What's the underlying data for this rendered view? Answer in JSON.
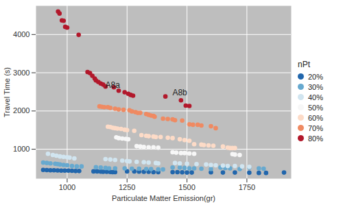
{
  "chart_data": {
    "type": "scatter",
    "xlabel": "Particulate Matter Emission(gr)",
    "ylabel": "Travel Time (s)",
    "xlim": [
      870,
      1935
    ],
    "ylim": [
      230,
      4750
    ],
    "xticks": [
      1000,
      1250,
      1500,
      1750
    ],
    "yticks": [
      1000,
      2000,
      3000,
      4000
    ],
    "grid": true,
    "legend": "right",
    "legend_title": "nPt",
    "annotations": [
      {
        "text": "A8a",
        "x": 1190,
        "y": 2680
      },
      {
        "text": "A8b",
        "x": 1470,
        "y": 2470
      }
    ],
    "series": [
      {
        "name": "20%",
        "color": "#2166ac",
        "x": [
          900,
          915,
          930,
          945,
          960,
          975,
          990,
          1005,
          1020,
          1035,
          1050,
          1110,
          1125,
          1140,
          1150,
          1165,
          1180,
          1190,
          1200,
          1250,
          1280,
          1300,
          1320,
          1340,
          1360,
          1380,
          1440,
          1460,
          1480,
          1500,
          1520,
          1600,
          1650,
          1700,
          1760,
          1800,
          1830,
          1905
        ],
        "values": [
          460,
          455,
          450,
          450,
          445,
          440,
          440,
          440,
          435,
          430,
          430,
          420,
          420,
          415,
          410,
          410,
          405,
          400,
          400,
          420,
          420,
          415,
          410,
          410,
          400,
          400,
          400,
          400,
          395,
          390,
          390,
          395,
          390,
          390,
          385,
          380,
          380,
          390
        ]
      },
      {
        "name": "30%",
        "color": "#67a9cf",
        "x": [
          900,
          915,
          930,
          950,
          960,
          970,
          985,
          1000,
          1020,
          1040,
          1060,
          1120,
          1140,
          1160,
          1175,
          1200,
          1240,
          1270,
          1300,
          1330,
          1350,
          1380,
          1400,
          1440,
          1470,
          1490,
          1510,
          1530,
          1560,
          1600,
          1640,
          1660,
          1680,
          1720,
          1760,
          1800,
          1820
        ],
        "values": [
          650,
          640,
          630,
          620,
          610,
          600,
          590,
          580,
          560,
          550,
          550,
          530,
          520,
          510,
          500,
          500,
          500,
          490,
          490,
          480,
          480,
          470,
          470,
          520,
          520,
          510,
          500,
          500,
          490,
          480,
          520,
          510,
          500,
          480,
          520,
          500,
          490
        ]
      },
      {
        "name": "40%",
        "color": "#d1e5f0",
        "x": [
          920,
          940,
          955,
          970,
          985,
          1000,
          1010,
          1030,
          1160,
          1180,
          1200,
          1230,
          1250,
          1260,
          1290,
          1320,
          1340,
          1370,
          1380,
          1450,
          1470,
          1500,
          1540,
          1580,
          1600,
          1620,
          1650,
          1670,
          1700,
          1730,
          1760
        ],
        "values": [
          880,
          850,
          830,
          810,
          800,
          790,
          780,
          760,
          740,
          730,
          720,
          700,
          690,
          680,
          670,
          660,
          650,
          640,
          630,
          640,
          630,
          620,
          610,
          600,
          590,
          580,
          570,
          560,
          560,
          550,
          540
        ]
      },
      {
        "name": "50%",
        "color": "#f7f7f7",
        "x": [
          1205,
          1215,
          1230,
          1245,
          1255,
          1290,
          1305,
          1320,
          1340,
          1360,
          1380,
          1440,
          1455,
          1475,
          1490,
          1510,
          1530,
          1690,
          1700,
          1720
        ],
        "values": [
          1310,
          1290,
          1280,
          1270,
          1260,
          1080,
          1070,
          1060,
          1050,
          1050,
          1040,
          920,
          910,
          900,
          900,
          890,
          880,
          870,
          860,
          850
        ]
      },
      {
        "name": "60%",
        "color": "#fddbc7",
        "x": [
          1170,
          1180,
          1190,
          1200,
          1210,
          1225,
          1240,
          1250,
          1280,
          1310,
          1330,
          1340,
          1360,
          1370,
          1390,
          1420,
          1440,
          1470,
          1490,
          1510,
          1530,
          1560,
          1570,
          1590,
          1610,
          1650,
          1670,
          1680,
          1690,
          1700
        ],
        "values": [
          1590,
          1580,
          1560,
          1550,
          1540,
          1530,
          1510,
          1500,
          1480,
          1370,
          1350,
          1340,
          1330,
          1320,
          1320,
          1300,
          1290,
          1260,
          1240,
          1220,
          1130,
          1120,
          1110,
          1100,
          1090,
          1070,
          1040,
          1030,
          1030,
          1030
        ]
      },
      {
        "name": "70%",
        "color": "#ef8a62",
        "x": [
          1135,
          1145,
          1155,
          1170,
          1180,
          1200,
          1215,
          1235,
          1260,
          1270,
          1285,
          1295,
          1305,
          1330,
          1340,
          1350,
          1360,
          1365,
          1400,
          1420,
          1440,
          1450,
          1480,
          1510,
          1525,
          1545,
          1560,
          1600,
          1620
        ],
        "values": [
          2120,
          2110,
          2100,
          2100,
          2080,
          2060,
          2040,
          2030,
          2020,
          1990,
          1970,
          1950,
          1950,
          1920,
          1900,
          1880,
          1870,
          1850,
          1800,
          1790,
          1780,
          1760,
          1750,
          1650,
          1640,
          1640,
          1620,
          1600,
          1550
        ]
      },
      {
        "name": "80%",
        "color": "#b2182b",
        "x": [
          962,
          968,
          978,
          985,
          992,
          1000,
          1048,
          1085,
          1095,
          1105,
          1115,
          1120,
          1130,
          1140,
          1150,
          1160,
          1195,
          1215,
          1240,
          1255,
          1265,
          1275,
          1410,
          1475,
          1495,
          1510
        ],
        "values": [
          4600,
          4550,
          4370,
          4360,
          4200,
          4180,
          3990,
          3020,
          2990,
          2920,
          2850,
          2800,
          2760,
          2720,
          2690,
          2640,
          2620,
          2530,
          2490,
          2450,
          2420,
          2400,
          2380,
          2280,
          2140,
          2130
        ]
      }
    ]
  }
}
